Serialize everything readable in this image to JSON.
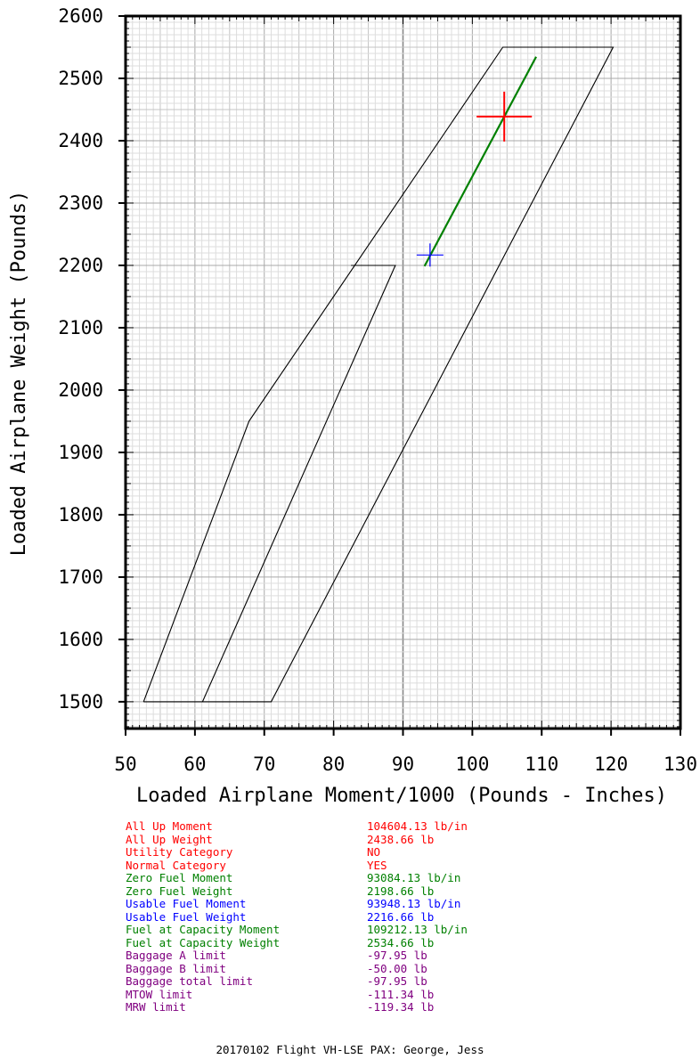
{
  "chart_data": {
    "type": "line",
    "xlabel": "Loaded Airplane Moment/1000 (Pounds - Inches)",
    "ylabel": "Loaded Airplane Weight (Pounds)",
    "xlim": [
      50,
      130
    ],
    "ylim": [
      1457,
      2600
    ],
    "xticks": [
      50,
      60,
      70,
      80,
      90,
      100,
      110,
      120,
      130
    ],
    "yticks": [
      1500,
      1600,
      1700,
      1800,
      1900,
      2000,
      2100,
      2200,
      2300,
      2400,
      2500,
      2600
    ],
    "grid": true,
    "envelopes": [
      {
        "points": [
          [
            52.6,
            1500
          ],
          [
            71.0,
            1500
          ],
          [
            120.3,
            2550
          ],
          [
            104.4,
            2550
          ],
          [
            67.8,
            1950
          ],
          [
            52.6,
            1500
          ]
        ],
        "color": "#000000"
      },
      {
        "points": [
          [
            61.1,
            1500
          ],
          [
            88.9,
            2200
          ],
          [
            82.5,
            2200
          ]
        ],
        "color": "#000000"
      }
    ],
    "fuel_line": {
      "from": [
        93.1,
        2198.66
      ],
      "to": [
        109.2,
        2534.66
      ],
      "color": "#008000"
    },
    "markers": [
      {
        "name": "All Up",
        "x": 104.6,
        "y": 2438.66,
        "color": "#ff0000",
        "size": "large"
      },
      {
        "name": "Usable Fuel",
        "x": 93.9,
        "y": 2216.66,
        "color": "#0000ff",
        "size": "small"
      }
    ]
  },
  "summary": [
    {
      "label": "All Up Moment",
      "value": "104604.13 lb/in",
      "color": "#ff0000"
    },
    {
      "label": "All Up Weight",
      "value": "2438.66 lb",
      "color": "#ff0000"
    },
    {
      "label": "Utility Category",
      "value": "NO",
      "color": "#ff0000"
    },
    {
      "label": "Normal Category",
      "value": "YES",
      "color": "#ff0000"
    },
    {
      "label": "Zero Fuel Moment",
      "value": "93084.13 lb/in",
      "color": "#008000"
    },
    {
      "label": "Zero Fuel Weight",
      "value": "2198.66 lb",
      "color": "#008000"
    },
    {
      "label": "Usable Fuel Moment",
      "value": "93948.13 lb/in",
      "color": "#0000ff"
    },
    {
      "label": "Usable Fuel Weight",
      "value": "2216.66 lb",
      "color": "#0000ff"
    },
    {
      "label": "Fuel at Capacity Moment",
      "value": "109212.13 lb/in",
      "color": "#008000"
    },
    {
      "label": "Fuel at Capacity Weight",
      "value": "2534.66 lb",
      "color": "#008000"
    },
    {
      "label": "Baggage A limit",
      "value": "-97.95 lb",
      "color": "#800080"
    },
    {
      "label": "Baggage B limit",
      "value": "-50.00 lb",
      "color": "#800080"
    },
    {
      "label": "Baggage total limit",
      "value": "-97.95 lb",
      "color": "#800080"
    },
    {
      "label": "MTOW limit",
      "value": "-111.34 lb",
      "color": "#800080"
    },
    {
      "label": "MRW limit",
      "value": "-119.34 lb",
      "color": "#800080"
    }
  ],
  "footer": "20170102 Flight VH-LSE PAX: George, Jess"
}
